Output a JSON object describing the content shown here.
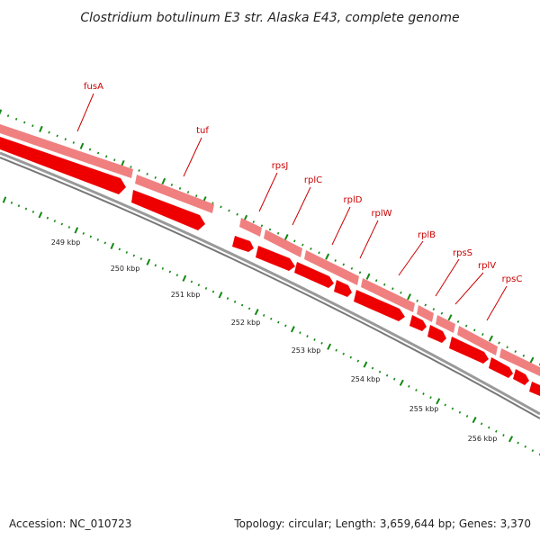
{
  "title": "Clostridium botulinum E3 str. Alaska E43, complete genome",
  "footer": {
    "accession": "Accession: NC_010723",
    "summary": "Topology: circular; Length: 3,659,644 bp; Genes: 3,370"
  },
  "colors": {
    "gene_label": "#cc0000",
    "leader_line": "#cc0000",
    "gene_outer": "#f08080",
    "gene_inner": "#ee0000",
    "backbone": "#777777",
    "tick": "#118811"
  },
  "kbp_labels": [
    "249 kbp",
    "250 kbp",
    "251 kbp",
    "252 kbp",
    "253 kbp",
    "254 kbp",
    "255 kbp",
    "256 kbp"
  ],
  "genes": [
    {
      "name": "fusA"
    },
    {
      "name": "tuf"
    },
    {
      "name": "rpsJ"
    },
    {
      "name": "rplC"
    },
    {
      "name": "rplD"
    },
    {
      "name": "rplW"
    },
    {
      "name": "rplB"
    },
    {
      "name": "rpsS"
    },
    {
      "name": "rplV"
    },
    {
      "name": "rpsC"
    }
  ]
}
